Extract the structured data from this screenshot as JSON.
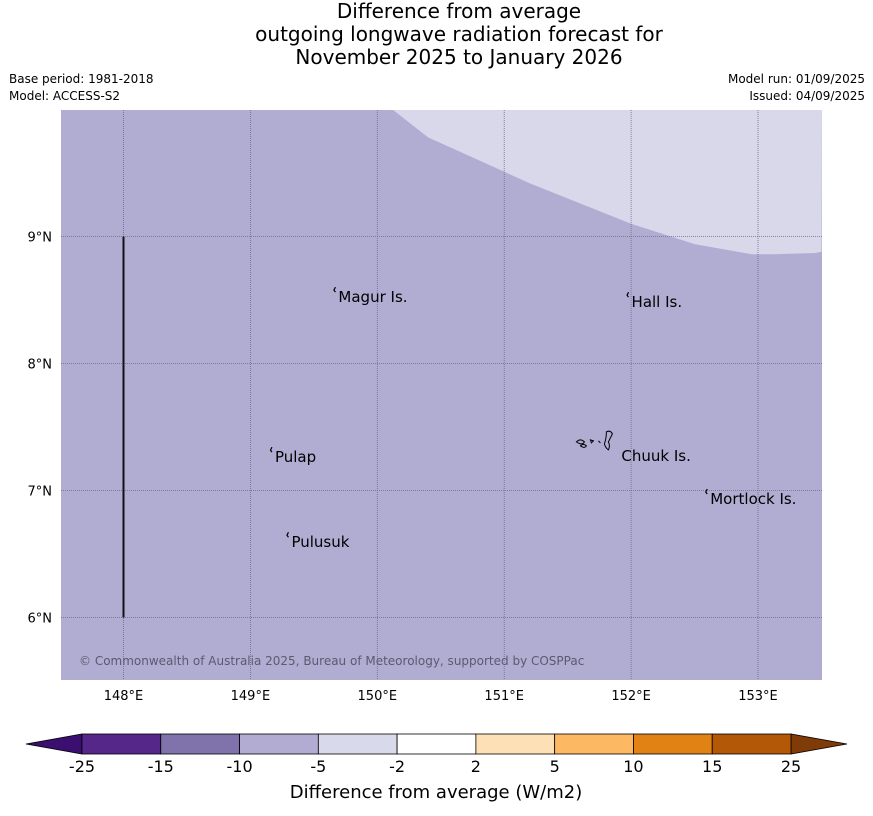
{
  "title": {
    "line1": "Difference from average",
    "line2": "outgoing longwave radiation forecast for",
    "line3": "November 2025 to January 2026"
  },
  "meta": {
    "base_period": "Base period: 1981-2018",
    "model": "Model: ACCESS-S2",
    "model_run": "Model run: 01/09/2025",
    "issued": "Issued: 04/09/2025"
  },
  "map": {
    "lon_range": [
      147.5,
      153.5
    ],
    "lat_range": [
      5.5,
      10.0
    ],
    "background_color": "#b1acd2",
    "region_color": "#d8d8ea",
    "gridline_color": "#6e6a8a",
    "x_ticks": [
      {
        "value": 148,
        "label": "148°E"
      },
      {
        "value": 149,
        "label": "149°E"
      },
      {
        "value": 150,
        "label": "150°E"
      },
      {
        "value": 151,
        "label": "151°E"
      },
      {
        "value": 152,
        "label": "152°E"
      },
      {
        "value": 153,
        "label": "153°E"
      }
    ],
    "y_ticks": [
      {
        "value": 9,
        "label": "9°N"
      },
      {
        "value": 8,
        "label": "8°N"
      },
      {
        "value": 7,
        "label": "7°N"
      },
      {
        "value": 6,
        "label": "6°N"
      }
    ],
    "light_region_boundary": [
      [
        150.12,
        10.0
      ],
      [
        150.4,
        9.78
      ],
      [
        150.8,
        9.6
      ],
      [
        151.2,
        9.42
      ],
      [
        151.6,
        9.26
      ],
      [
        152.0,
        9.1
      ],
      [
        152.5,
        8.94
      ],
      [
        152.95,
        8.86
      ],
      [
        153.12,
        8.86
      ],
      [
        153.45,
        8.87
      ],
      [
        153.5,
        8.88
      ]
    ],
    "boundary_line": {
      "lon": 148.0,
      "lat_from": 6.0,
      "lat_to": 9.0
    },
    "places": [
      {
        "name": "Magur Is.",
        "lon": 149.67,
        "lat": 8.57
      },
      {
        "name": "Hall Is.",
        "lon": 151.98,
        "lat": 8.53
      },
      {
        "name": "Pulap",
        "lon": 149.17,
        "lat": 7.31
      },
      {
        "name": "Chuuk Is.",
        "lon": 151.9,
        "lat": 7.32
      },
      {
        "name": "Mortlock Is.",
        "lon": 152.6,
        "lat": 6.98
      },
      {
        "name": "Pulusuk",
        "lon": 149.3,
        "lat": 6.64
      }
    ],
    "copyright": "© Commonwealth of Australia 2025, Bureau of Meteorology, supported by COSPPac"
  },
  "colorbar": {
    "label": "Difference from average (W/m2)",
    "ticks": [
      "-25",
      "-15",
      "-10",
      "-5",
      "-2",
      "2",
      "5",
      "10",
      "15",
      "25"
    ],
    "low_extend_color": "#3b0f6f",
    "high_extend_color": "#7f3b08",
    "colors": [
      "#542788",
      "#8073ac",
      "#b2abd2",
      "#d8daeb",
      "#ffffff",
      "#fee0b6",
      "#fdb863",
      "#e08214",
      "#b35806"
    ]
  }
}
